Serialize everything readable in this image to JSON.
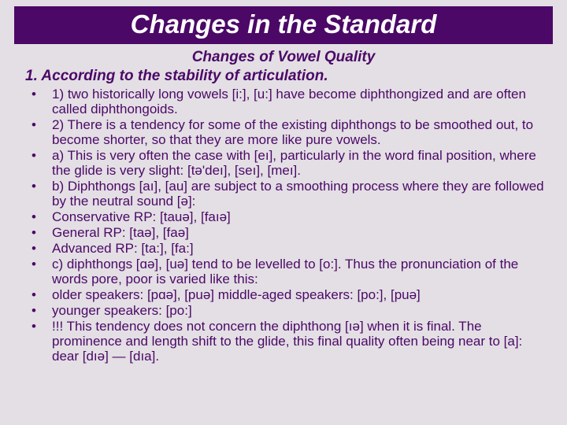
{
  "colors": {
    "background": "#e3dfe4",
    "titlebar_bg": "#4b0867",
    "titlebar_text": "#ffffff",
    "body_text": "#4b0867"
  },
  "typography": {
    "family": "Comic Sans MS",
    "title_size_pt": 33,
    "subtitle_size_pt": 19,
    "body_size_pt": 17
  },
  "title": "Changes in the Standard",
  "subtitle": "Changes of Vowel Quality",
  "section_heading": "1. According to the stability of articulation.",
  "bullets": [
    "1) two historically long vowels [i:], [u:] have become diphthongized and are often called diphthongoids.",
    "2) There is a tendency for some of the existing diphthongs to be smoothed out, to become shorter, so that they are more like pure vowels.",
    "a) This is very often the case with [eı], particularly in the word final position, where the glide is very slight: [tə'deı], [seı], [meı].",
    "b) Diphthongs [aı], [au] are subject to a smoothing process where they are followed by the neutral sound [ə]:",
    "Conservative RP: [tauə], [faıə]",
    "General RP: [taə], [faə]",
    "Advanced RP: [ta:], [fa:]",
    "c) diphthongs [ɑə], [uə] tend to be levelled to [o:]. Thus the pronunciation of the words pore, poor is varied like this:",
    "older speakers: [pɑə], [puə] middle-aged speakers: [po:], [puə]",
    "younger speakers: [po:]",
    "!!! This tendency does not concern the diphthong [ıə] when it is final. The prominence and length shift to the glide, this final quality often being near to [a]: dear [dıə] — [dıa]."
  ]
}
